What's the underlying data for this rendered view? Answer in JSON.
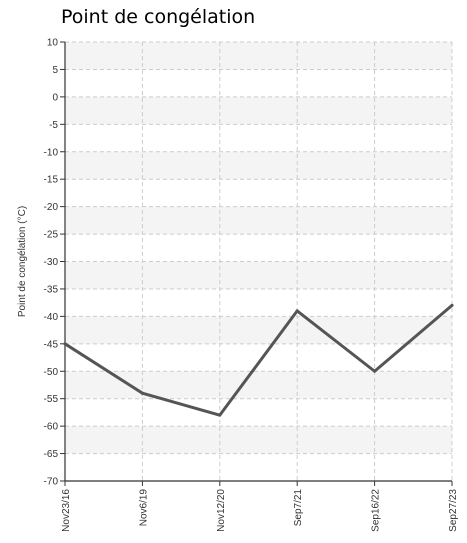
{
  "chart_data": {
    "type": "line",
    "title": "Point de congélation",
    "xlabel": "",
    "ylabel": "Point de congélation (°C)",
    "categories": [
      "Nov23/16",
      "Nov6/19",
      "Nov12/20",
      "Sep7/21",
      "Sep16/22",
      "Sep27/23"
    ],
    "series": [
      {
        "values": [
          -45,
          -54,
          -58,
          -39,
          -50,
          -38
        ]
      }
    ],
    "ylim": [
      -70,
      10
    ],
    "yticks": [
      10,
      5,
      0,
      -5,
      -10,
      -15,
      -20,
      -25,
      -30,
      -35,
      -40,
      -45,
      -50,
      -55,
      -60,
      -65,
      -70
    ],
    "grid": true,
    "legend": "none",
    "colors": {
      "line": "#555555",
      "band": "#f4f4f4",
      "grid": "#cccccc",
      "axis": "#333333"
    }
  }
}
